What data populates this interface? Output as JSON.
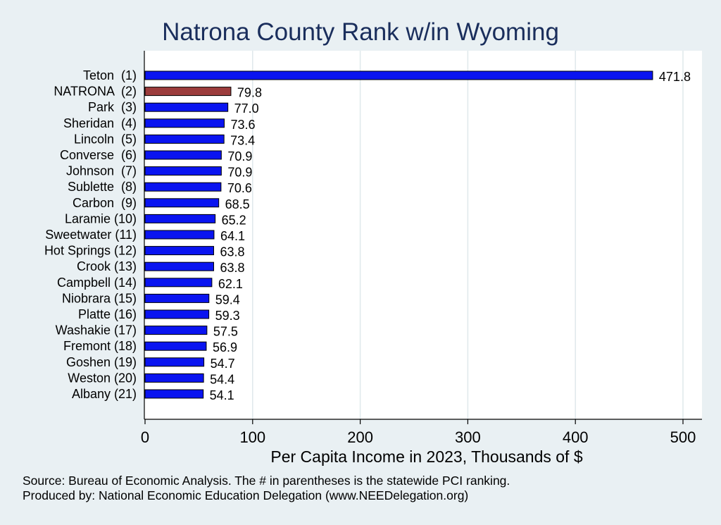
{
  "chart_data": {
    "type": "bar",
    "orientation": "horizontal",
    "title": "Natrona County Rank w/in Wyoming",
    "xlabel": "Per Capita Income in 2023, Thousands of $",
    "ylabel": "",
    "xlim": [
      0,
      500
    ],
    "xticks": [
      0,
      100,
      200,
      300,
      400,
      500
    ],
    "grid": true,
    "categories": [
      "Teton  (1)",
      "NATRONA  (2)",
      "Park  (3)",
      "Sheridan  (4)",
      "Lincoln  (5)",
      "Converse  (6)",
      "Johnson  (7)",
      "Sublette  (8)",
      "Carbon  (9)",
      "Laramie (10)",
      "Sweetwater (11)",
      "Hot Springs (12)",
      "Crook (13)",
      "Campbell (14)",
      "Niobrara (15)",
      "Platte (16)",
      "Washakie (17)",
      "Fremont (18)",
      "Goshen (19)",
      "Weston (20)",
      "Albany (21)"
    ],
    "values": [
      471.8,
      79.8,
      77.0,
      73.6,
      73.4,
      70.9,
      70.9,
      70.6,
      68.5,
      65.2,
      64.1,
      63.8,
      63.8,
      62.1,
      59.4,
      59.3,
      57.5,
      56.9,
      54.7,
      54.4,
      54.1
    ],
    "value_labels": [
      "471.8",
      "79.8",
      "77.0",
      "73.6",
      "73.4",
      "70.9",
      "70.9",
      "70.6",
      "68.5",
      "65.2",
      "64.1",
      "63.8",
      "63.8",
      "62.1",
      "59.4",
      "59.3",
      "57.5",
      "56.9",
      "54.7",
      "54.4",
      "54.1"
    ],
    "highlight_index": 1,
    "colors": {
      "bar": "#0a14f0",
      "highlight": "#9c3c3c",
      "outline": "#000000",
      "grid": "#dfe8ec",
      "plot_bg": "#ffffff"
    }
  },
  "source_note": {
    "line1": "Source: Bureau of Economic Analysis. The # in parentheses is the statewide PCI ranking.",
    "line2": "Produced by: National Economic Education Delegation (www.NEEDelegation.org)"
  }
}
